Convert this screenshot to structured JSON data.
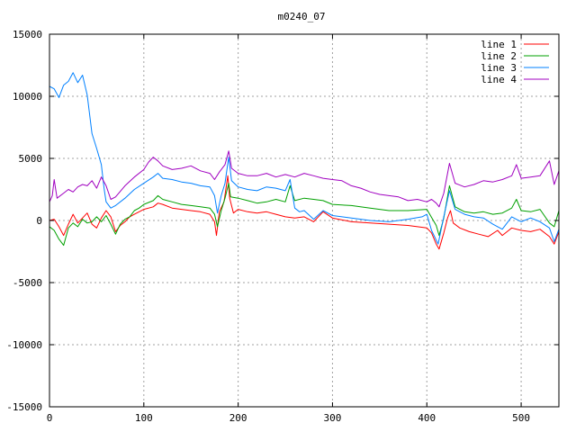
{
  "chart_data": {
    "type": "line",
    "title": "m0240_07",
    "xlabel": "",
    "ylabel": "",
    "xlim": [
      0,
      540
    ],
    "ylim": [
      -15000,
      15000
    ],
    "xticks": [
      0,
      100,
      200,
      300,
      400,
      500
    ],
    "yticks": [
      -15000,
      -10000,
      -5000,
      0,
      5000,
      10000,
      15000
    ],
    "xtick_labels": [
      "0",
      "100",
      "200",
      "300",
      "400",
      "500"
    ],
    "ytick_labels": [
      "-15000",
      "-10000",
      "-5000",
      "0",
      "5000",
      "10000",
      "15000"
    ],
    "grid": true,
    "legend_position": "top-right",
    "series": [
      {
        "name": "line 1",
        "color": "#ff0000",
        "points": [
          [
            0,
            0
          ],
          [
            5,
            100
          ],
          [
            10,
            -500
          ],
          [
            15,
            -1200
          ],
          [
            20,
            -300
          ],
          [
            25,
            500
          ],
          [
            30,
            -200
          ],
          [
            35,
            200
          ],
          [
            40,
            600
          ],
          [
            45,
            -300
          ],
          [
            50,
            -600
          ],
          [
            55,
            200
          ],
          [
            60,
            800
          ],
          [
            65,
            300
          ],
          [
            70,
            -900
          ],
          [
            75,
            -400
          ],
          [
            80,
            -100
          ],
          [
            85,
            300
          ],
          [
            90,
            500
          ],
          [
            95,
            700
          ],
          [
            100,
            900
          ],
          [
            110,
            1100
          ],
          [
            115,
            1400
          ],
          [
            120,
            1300
          ],
          [
            130,
            1000
          ],
          [
            140,
            900
          ],
          [
            150,
            800
          ],
          [
            160,
            700
          ],
          [
            170,
            500
          ],
          [
            175,
            -100
          ],
          [
            177,
            -1200
          ],
          [
            180,
            700
          ],
          [
            185,
            1500
          ],
          [
            189,
            3600
          ],
          [
            191,
            1800
          ],
          [
            195,
            600
          ],
          [
            200,
            900
          ],
          [
            210,
            700
          ],
          [
            220,
            600
          ],
          [
            230,
            700
          ],
          [
            240,
            500
          ],
          [
            250,
            300
          ],
          [
            260,
            200
          ],
          [
            270,
            300
          ],
          [
            280,
            -100
          ],
          [
            290,
            700
          ],
          [
            300,
            200
          ],
          [
            320,
            -100
          ],
          [
            340,
            -200
          ],
          [
            360,
            -300
          ],
          [
            380,
            -400
          ],
          [
            390,
            -500
          ],
          [
            400,
            -600
          ],
          [
            405,
            -1000
          ],
          [
            410,
            -1900
          ],
          [
            413,
            -2300
          ],
          [
            418,
            -1000
          ],
          [
            422,
            200
          ],
          [
            425,
            800
          ],
          [
            428,
            -200
          ],
          [
            435,
            -600
          ],
          [
            445,
            -900
          ],
          [
            455,
            -1100
          ],
          [
            465,
            -1300
          ],
          [
            475,
            -800
          ],
          [
            480,
            -1200
          ],
          [
            490,
            -600
          ],
          [
            500,
            -800
          ],
          [
            510,
            -900
          ],
          [
            520,
            -700
          ],
          [
            530,
            -1300
          ],
          [
            535,
            -1900
          ],
          [
            540,
            -900
          ]
        ]
      },
      {
        "name": "line 2",
        "color": "#00a000",
        "points": [
          [
            0,
            -500
          ],
          [
            5,
            -800
          ],
          [
            10,
            -1500
          ],
          [
            15,
            -2000
          ],
          [
            20,
            -600
          ],
          [
            25,
            -200
          ],
          [
            30,
            -500
          ],
          [
            35,
            100
          ],
          [
            40,
            -200
          ],
          [
            45,
            -100
          ],
          [
            50,
            300
          ],
          [
            55,
            -100
          ],
          [
            60,
            400
          ],
          [
            65,
            -300
          ],
          [
            70,
            -1100
          ],
          [
            75,
            -300
          ],
          [
            80,
            100
          ],
          [
            85,
            300
          ],
          [
            90,
            800
          ],
          [
            95,
            1000
          ],
          [
            100,
            1300
          ],
          [
            110,
            1600
          ],
          [
            115,
            2000
          ],
          [
            120,
            1700
          ],
          [
            130,
            1500
          ],
          [
            140,
            1300
          ],
          [
            150,
            1200
          ],
          [
            160,
            1100
          ],
          [
            170,
            1000
          ],
          [
            175,
            500
          ],
          [
            178,
            -500
          ],
          [
            182,
            800
          ],
          [
            186,
            1800
          ],
          [
            190,
            3000
          ],
          [
            192,
            1900
          ],
          [
            200,
            1800
          ],
          [
            210,
            1600
          ],
          [
            220,
            1400
          ],
          [
            230,
            1500
          ],
          [
            240,
            1700
          ],
          [
            250,
            1500
          ],
          [
            255,
            2800
          ],
          [
            260,
            1600
          ],
          [
            270,
            1800
          ],
          [
            280,
            1700
          ],
          [
            290,
            1600
          ],
          [
            300,
            1300
          ],
          [
            320,
            1200
          ],
          [
            340,
            1000
          ],
          [
            360,
            800
          ],
          [
            380,
            800
          ],
          [
            400,
            900
          ],
          [
            410,
            -400
          ],
          [
            413,
            -1200
          ],
          [
            418,
            200
          ],
          [
            424,
            2800
          ],
          [
            430,
            1100
          ],
          [
            440,
            700
          ],
          [
            450,
            600
          ],
          [
            460,
            700
          ],
          [
            470,
            500
          ],
          [
            480,
            600
          ],
          [
            490,
            1000
          ],
          [
            495,
            1700
          ],
          [
            500,
            800
          ],
          [
            510,
            700
          ],
          [
            520,
            900
          ],
          [
            530,
            -200
          ],
          [
            535,
            -500
          ],
          [
            540,
            800
          ]
        ]
      },
      {
        "name": "line 3",
        "color": "#0080ff",
        "points": [
          [
            0,
            10800
          ],
          [
            5,
            10600
          ],
          [
            10,
            9900
          ],
          [
            15,
            10900
          ],
          [
            20,
            11200
          ],
          [
            25,
            11900
          ],
          [
            30,
            11100
          ],
          [
            35,
            11700
          ],
          [
            40,
            10100
          ],
          [
            45,
            7000
          ],
          [
            50,
            5800
          ],
          [
            55,
            4500
          ],
          [
            58,
            2500
          ],
          [
            60,
            1500
          ],
          [
            65,
            1000
          ],
          [
            70,
            1200
          ],
          [
            80,
            1800
          ],
          [
            90,
            2500
          ],
          [
            100,
            3000
          ],
          [
            110,
            3500
          ],
          [
            115,
            3800
          ],
          [
            120,
            3400
          ],
          [
            130,
            3300
          ],
          [
            140,
            3100
          ],
          [
            150,
            3000
          ],
          [
            160,
            2800
          ],
          [
            170,
            2700
          ],
          [
            175,
            2000
          ],
          [
            178,
            600
          ],
          [
            182,
            2000
          ],
          [
            186,
            3000
          ],
          [
            190,
            5100
          ],
          [
            193,
            3200
          ],
          [
            200,
            2700
          ],
          [
            210,
            2500
          ],
          [
            220,
            2400
          ],
          [
            230,
            2700
          ],
          [
            240,
            2600
          ],
          [
            250,
            2400
          ],
          [
            255,
            3300
          ],
          [
            260,
            1000
          ],
          [
            265,
            700
          ],
          [
            270,
            800
          ],
          [
            280,
            100
          ],
          [
            290,
            800
          ],
          [
            300,
            400
          ],
          [
            320,
            200
          ],
          [
            340,
            0
          ],
          [
            360,
            -100
          ],
          [
            380,
            100
          ],
          [
            395,
            300
          ],
          [
            400,
            500
          ],
          [
            405,
            -800
          ],
          [
            412,
            -1900
          ],
          [
            418,
            300
          ],
          [
            424,
            2400
          ],
          [
            430,
            900
          ],
          [
            440,
            500
          ],
          [
            450,
            300
          ],
          [
            460,
            200
          ],
          [
            470,
            -300
          ],
          [
            480,
            -700
          ],
          [
            490,
            300
          ],
          [
            500,
            -100
          ],
          [
            510,
            200
          ],
          [
            520,
            -100
          ],
          [
            530,
            -600
          ],
          [
            535,
            -1700
          ],
          [
            540,
            -700
          ]
        ]
      },
      {
        "name": "line 4",
        "color": "#a000c0",
        "points": [
          [
            0,
            1500
          ],
          [
            3,
            2000
          ],
          [
            5,
            3300
          ],
          [
            8,
            1800
          ],
          [
            15,
            2200
          ],
          [
            20,
            2500
          ],
          [
            25,
            2300
          ],
          [
            30,
            2700
          ],
          [
            35,
            2900
          ],
          [
            40,
            2800
          ],
          [
            45,
            3200
          ],
          [
            50,
            2600
          ],
          [
            55,
            3500
          ],
          [
            60,
            2800
          ],
          [
            65,
            1700
          ],
          [
            70,
            1900
          ],
          [
            80,
            2800
          ],
          [
            90,
            3500
          ],
          [
            100,
            4100
          ],
          [
            105,
            4700
          ],
          [
            110,
            5100
          ],
          [
            115,
            4800
          ],
          [
            120,
            4400
          ],
          [
            130,
            4100
          ],
          [
            140,
            4200
          ],
          [
            150,
            4400
          ],
          [
            160,
            4000
          ],
          [
            170,
            3800
          ],
          [
            175,
            3300
          ],
          [
            180,
            3900
          ],
          [
            186,
            4500
          ],
          [
            190,
            5600
          ],
          [
            193,
            4200
          ],
          [
            200,
            3800
          ],
          [
            210,
            3600
          ],
          [
            220,
            3600
          ],
          [
            230,
            3800
          ],
          [
            240,
            3500
          ],
          [
            250,
            3700
          ],
          [
            260,
            3500
          ],
          [
            270,
            3800
          ],
          [
            280,
            3600
          ],
          [
            290,
            3400
          ],
          [
            300,
            3300
          ],
          [
            310,
            3200
          ],
          [
            320,
            2800
          ],
          [
            330,
            2600
          ],
          [
            340,
            2300
          ],
          [
            350,
            2100
          ],
          [
            360,
            2000
          ],
          [
            370,
            1900
          ],
          [
            380,
            1600
          ],
          [
            390,
            1700
          ],
          [
            400,
            1500
          ],
          [
            405,
            1700
          ],
          [
            410,
            1400
          ],
          [
            413,
            1100
          ],
          [
            418,
            2200
          ],
          [
            424,
            4600
          ],
          [
            430,
            3000
          ],
          [
            440,
            2700
          ],
          [
            450,
            2900
          ],
          [
            460,
            3200
          ],
          [
            470,
            3100
          ],
          [
            480,
            3300
          ],
          [
            490,
            3600
          ],
          [
            495,
            4500
          ],
          [
            500,
            3400
          ],
          [
            510,
            3500
          ],
          [
            520,
            3600
          ],
          [
            530,
            4800
          ],
          [
            535,
            2900
          ],
          [
            540,
            4000
          ]
        ]
      }
    ]
  }
}
